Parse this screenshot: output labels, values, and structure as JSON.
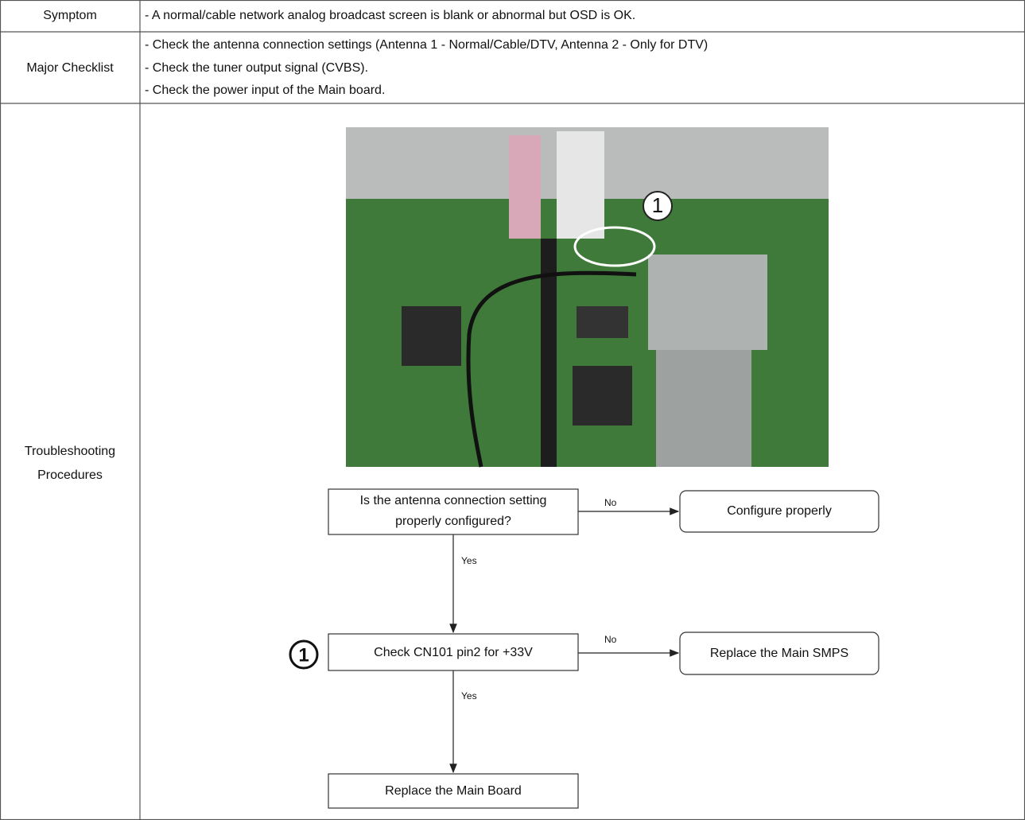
{
  "table": {
    "rows": [
      {
        "label": [
          "Symptom"
        ],
        "content": [
          "- A normal/cable network analog broadcast screen is blank or abnormal but OSD is OK."
        ]
      },
      {
        "label": [
          "Major Checklist"
        ],
        "content": [
          "- Check the antenna connection settings (Antenna 1 - Normal/Cable/DTV, Antenna 2 - Only for DTV)",
          "- Check the tuner output signal (CVBS).",
          "- Check the power input of the Main board."
        ]
      },
      {
        "label": [
          "Troubleshooting",
          "Procedures"
        ]
      }
    ]
  },
  "photo": {
    "callout": "1"
  },
  "flowchart": {
    "nodes": [
      {
        "lines": [
          "Is the antenna connection setting",
          "properly configured?"
        ]
      },
      {
        "lines": [
          "Configure properly"
        ]
      },
      {
        "lines": [
          "Check CN101 pin2 for +33V"
        ],
        "marker": "1"
      },
      {
        "lines": [
          "Replace the Main SMPS"
        ]
      },
      {
        "lines": [
          "Replace the Main Board"
        ]
      }
    ],
    "edges": [
      {
        "label": "No"
      },
      {
        "label": "Yes"
      },
      {
        "label": "No"
      },
      {
        "label": "Yes"
      }
    ]
  }
}
